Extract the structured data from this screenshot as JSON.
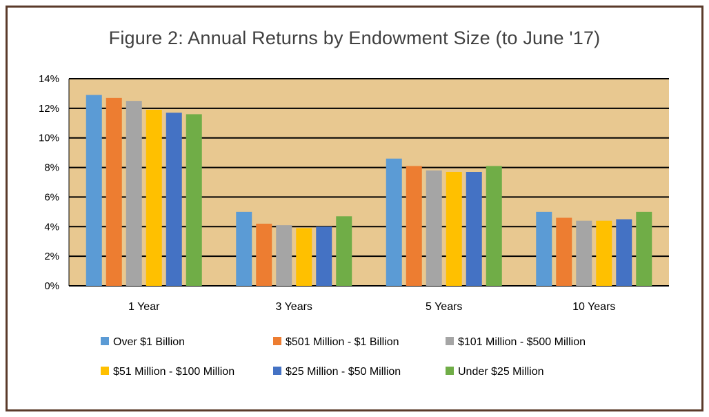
{
  "chart_data": {
    "type": "bar",
    "title": "Figure 2: Annual Returns by Endowment Size (to June '17)",
    "xlabel": "",
    "ylabel": "",
    "categories": [
      "1 Year",
      "3 Years",
      "5 Years",
      "10 Years"
    ],
    "ylim": [
      0,
      14
    ],
    "ytick_labels": [
      "0%",
      "2%",
      "4%",
      "6%",
      "8%",
      "10%",
      "12%",
      "14%"
    ],
    "grid": true,
    "legend_position": "bottom",
    "plot_background": "#E8C890",
    "series": [
      {
        "name": "Over $1 Billion",
        "color": "#5B9BD5",
        "values": [
          12.9,
          5.0,
          8.6,
          5.0
        ]
      },
      {
        "name": "$501 Million - $1 Billion",
        "color": "#ED7D31",
        "values": [
          12.7,
          4.2,
          8.1,
          4.6
        ]
      },
      {
        "name": "$101 Million - $500 Million",
        "color": "#A5A5A5",
        "values": [
          12.5,
          4.1,
          7.8,
          4.4
        ]
      },
      {
        "name": "$51 Million - $100 Million",
        "color": "#FFC000",
        "values": [
          11.9,
          3.9,
          7.7,
          4.4
        ]
      },
      {
        "name": "$25 Million - $50 Million",
        "color": "#4472C4",
        "values": [
          11.7,
          4.0,
          7.7,
          4.5
        ]
      },
      {
        "name": "Under $25 Million",
        "color": "#70AD47",
        "values": [
          11.6,
          4.7,
          8.1,
          5.0
        ]
      }
    ]
  }
}
